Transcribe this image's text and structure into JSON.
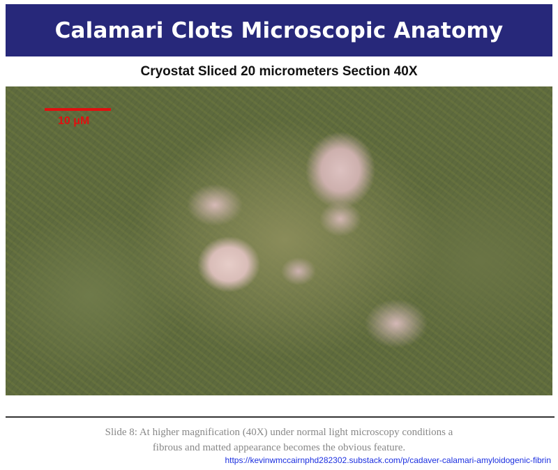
{
  "header": {
    "title": "Calamari Clots Microscopic Anatomy",
    "background_color": "#27287a"
  },
  "subtitle": "Cryostat Sliced 20 micrometers Section 40X",
  "micrograph": {
    "scale_bar_label": "10 μM",
    "scale_bar_color": "#e01010"
  },
  "caption": {
    "line1": "Slide 8: At higher magnification (40X) under normal light microscopy conditions a",
    "line2": "fibrous and matted appearance becomes the obvious feature."
  },
  "source_link": "https://kevinwmccairnphd282302.substack.com/p/cadaver-calamari-amyloidogenic-fibrin"
}
